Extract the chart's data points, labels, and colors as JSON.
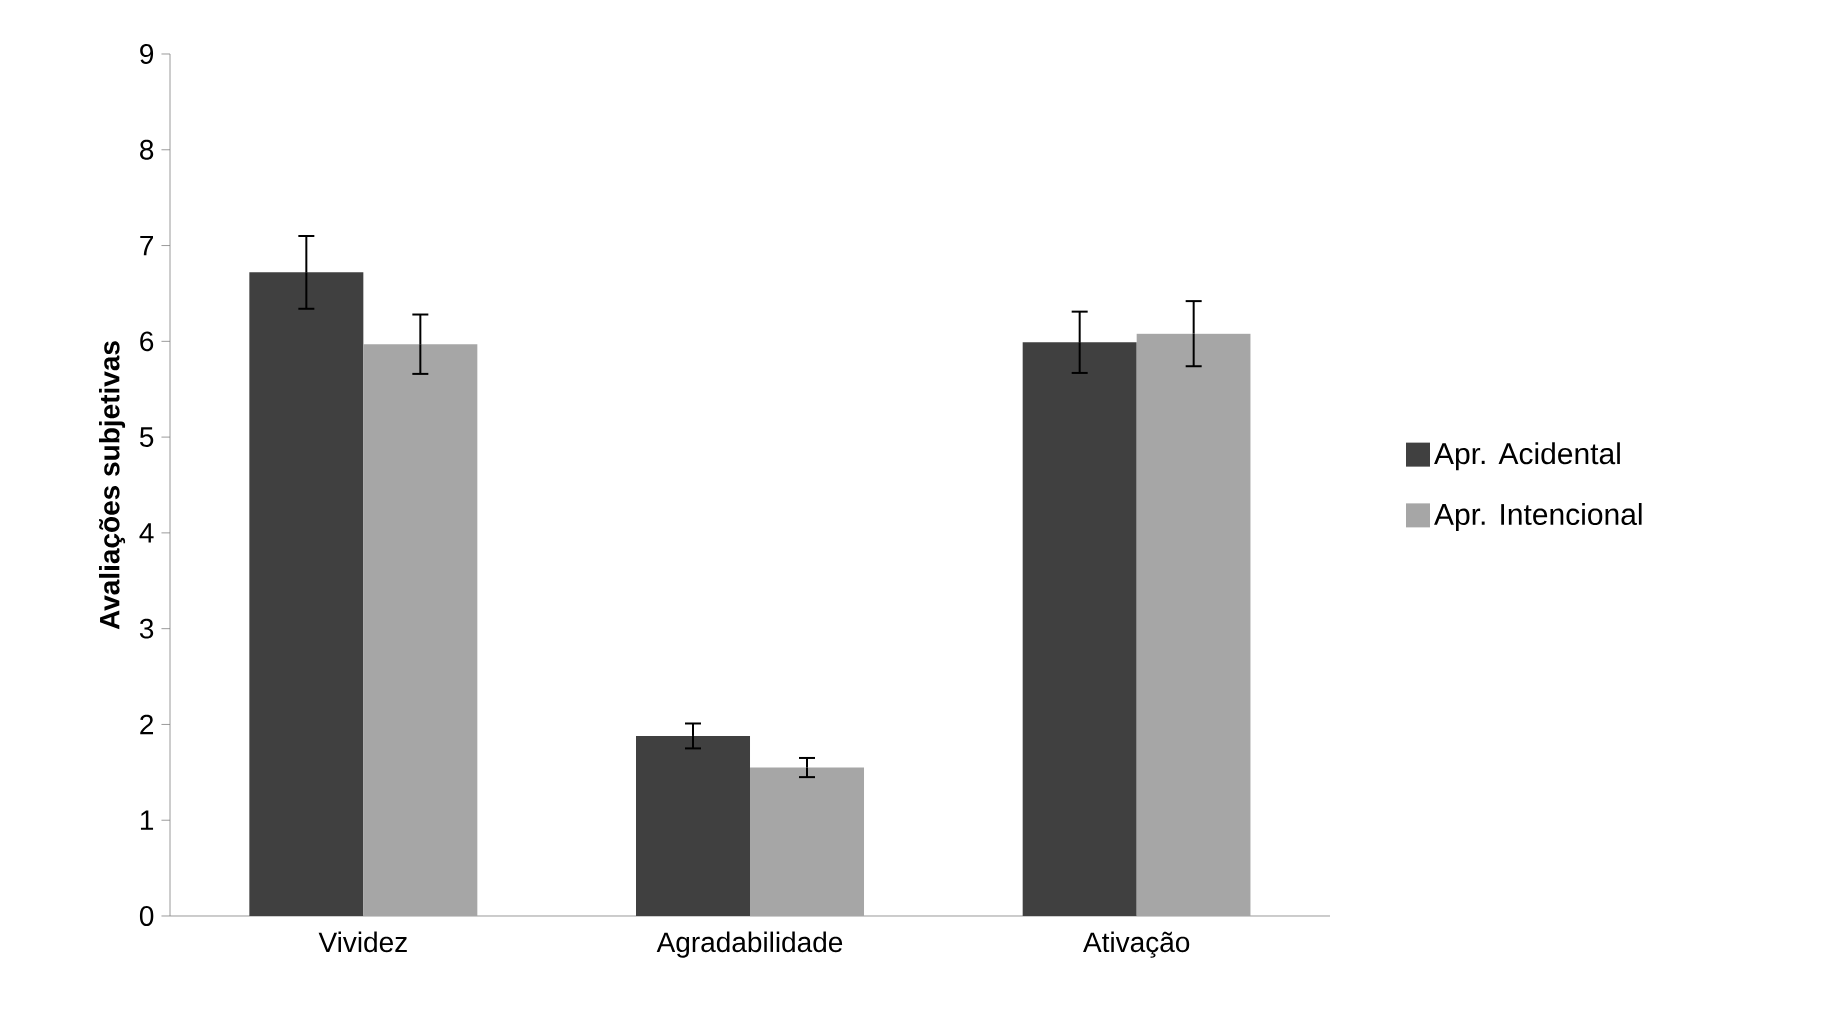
{
  "chart_data": {
    "type": "bar",
    "ylabel": "Avaliações  subjetivas",
    "categories": [
      "Vividez",
      "Agradabilidade",
      "Ativação"
    ],
    "series": [
      {
        "name": "Apr. Acidental",
        "color": "#404040",
        "values": [
          6.72,
          1.88,
          5.99
        ],
        "errors": [
          0.38,
          0.13,
          0.32
        ]
      },
      {
        "name": "Apr. Intencional",
        "color": "#a6a6a6",
        "values": [
          5.97,
          1.55,
          6.08
        ],
        "errors": [
          0.31,
          0.1,
          0.34
        ]
      }
    ],
    "ylim": [
      0,
      9
    ],
    "yticks": [
      0,
      1,
      2,
      3,
      4,
      5,
      6,
      7,
      8,
      9
    ],
    "grid": false,
    "legend": "right"
  }
}
